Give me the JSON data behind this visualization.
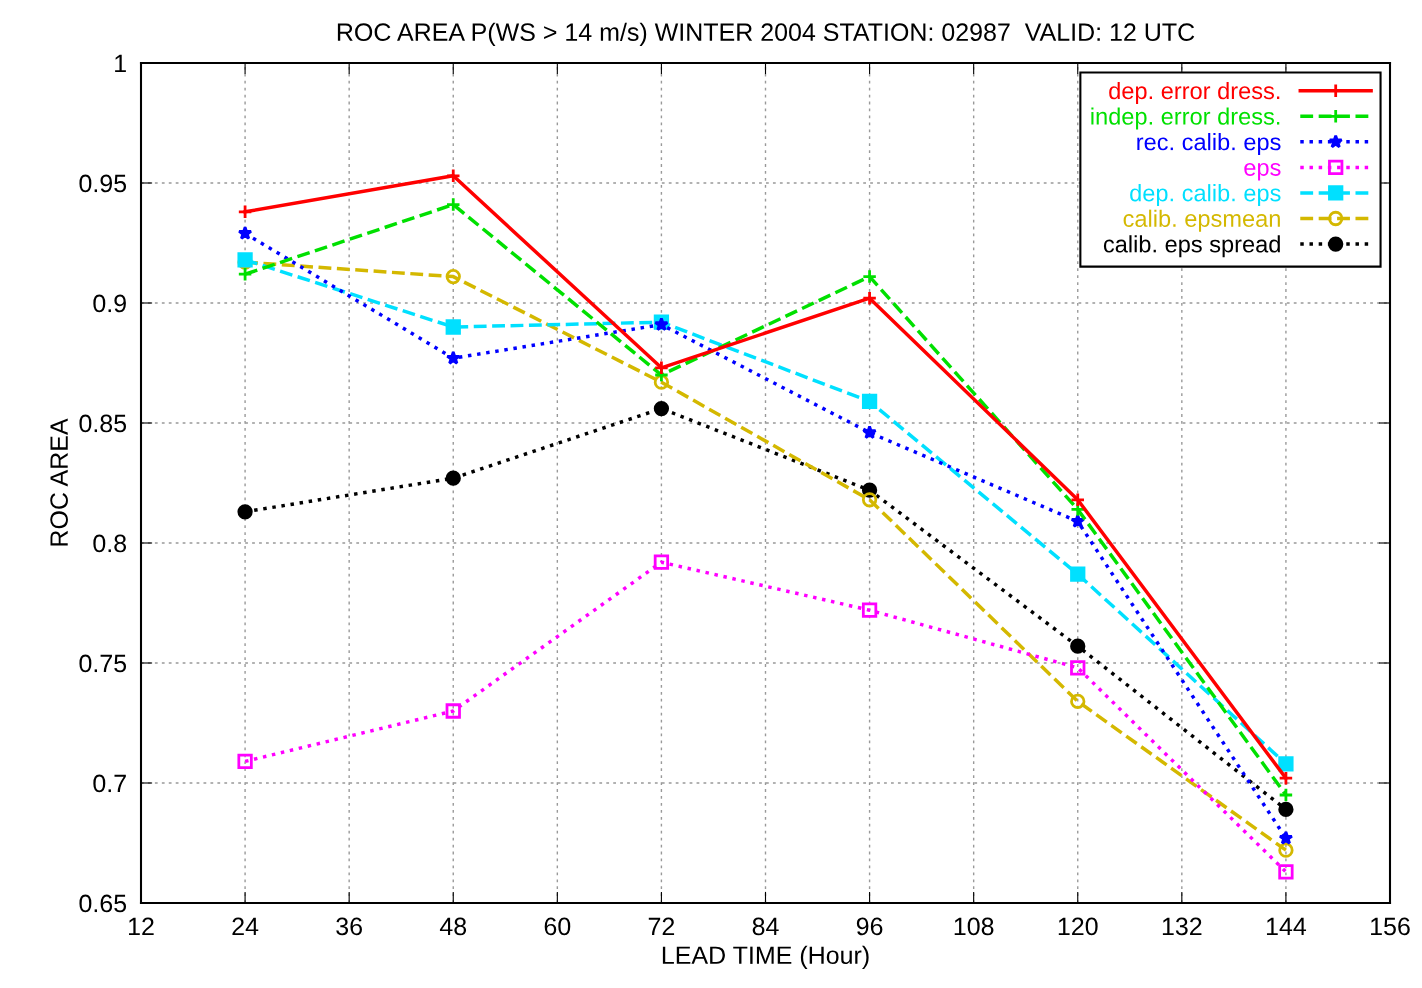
{
  "chart_data": {
    "type": "line",
    "title": "ROC AREA P(WS > 14 m/s) WINTER 2004 STATION: 02987  VALID: 12 UTC",
    "xlabel": "LEAD TIME (Hour)",
    "ylabel": "ROC AREA",
    "x": [
      24,
      48,
      72,
      96,
      120,
      144
    ],
    "series": [
      {
        "name": "dep. error dress.",
        "color": "#ff0000",
        "marker": "cross",
        "line_style": "solid",
        "values": [
          0.938,
          0.953,
          0.873,
          0.902,
          0.818,
          0.702
        ]
      },
      {
        "name": "indep. error dress.",
        "color": "#00e000",
        "marker": "cross",
        "line_style": "dashed",
        "values": [
          0.912,
          0.941,
          0.87,
          0.911,
          0.814,
          0.695
        ]
      },
      {
        "name": "rec. calib. eps",
        "color": "#0000ff",
        "marker": "star",
        "line_style": "dotted",
        "values": [
          0.929,
          0.877,
          0.891,
          0.846,
          0.809,
          0.677
        ]
      },
      {
        "name": "eps",
        "color": "#ff00ff",
        "marker": "square",
        "line_style": "dotted",
        "values": [
          0.709,
          0.73,
          0.792,
          0.772,
          0.748,
          0.663
        ]
      },
      {
        "name": "dep. calib. eps",
        "color": "#00e0ff",
        "marker": "square",
        "line_style": "dashed",
        "values": [
          0.918,
          0.89,
          0.892,
          0.859,
          0.787,
          0.708
        ]
      },
      {
        "name": "calib. epsmean",
        "color": "#d4b800",
        "marker": "circle",
        "line_style": "dashed",
        "values": [
          0.917,
          0.911,
          0.867,
          0.818,
          0.734,
          0.672
        ]
      },
      {
        "name": "calib. eps spread",
        "color": "#000000",
        "marker": "circle",
        "line_style": "dotted",
        "values": [
          0.813,
          0.827,
          0.856,
          0.822,
          0.757,
          0.689
        ]
      }
    ],
    "xlim": [
      12,
      156
    ],
    "xticks": [
      12,
      24,
      36,
      48,
      60,
      72,
      84,
      96,
      108,
      120,
      132,
      144,
      156
    ],
    "ylim": [
      0.65,
      1
    ],
    "yticks": [
      0.65,
      0.7,
      0.75,
      0.8,
      0.85,
      0.9,
      0.95,
      1
    ],
    "grid": true,
    "legend": "top right"
  }
}
